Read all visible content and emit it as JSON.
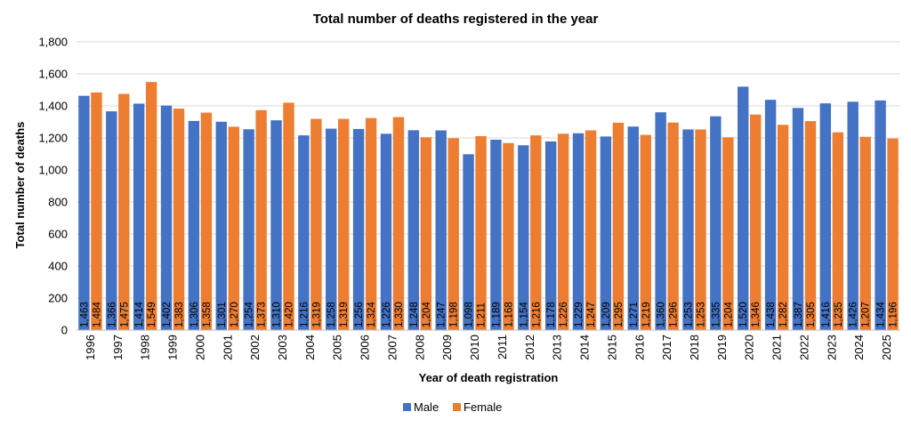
{
  "chart_data": {
    "type": "bar",
    "title": "Total number of deaths registered in the year",
    "xlabel": "Year of death registration",
    "ylabel": "Total number of deaths",
    "ylim": [
      0,
      1800
    ],
    "yticks": [
      "0",
      "200",
      "400",
      "600",
      "800",
      "1,000",
      "1,200",
      "1,400",
      "1,600",
      "1,800"
    ],
    "grid": true,
    "legend_position": "bottom",
    "categories": [
      "1996",
      "1997",
      "1998",
      "1999",
      "2000",
      "2001",
      "2002",
      "2003",
      "2004",
      "2005",
      "2006",
      "2007",
      "2008",
      "2009",
      "2010",
      "2011",
      "2012",
      "2013",
      "2014",
      "2015",
      "2016",
      "2017",
      "2018",
      "2019",
      "2020",
      "2021",
      "2022",
      "2023",
      "2024",
      "2025"
    ],
    "series": [
      {
        "name": "Male",
        "color": "#4472C4",
        "values": [
          1463,
          1366,
          1414,
          1402,
          1306,
          1301,
          1254,
          1310,
          1216,
          1258,
          1256,
          1226,
          1248,
          1247,
          1098,
          1189,
          1154,
          1178,
          1229,
          1209,
          1271,
          1360,
          1253,
          1335,
          1520,
          1438,
          1387,
          1416,
          1426,
          1434
        ],
        "labels": [
          "1,463",
          "1,366",
          "1,414",
          "1,402",
          "1,306",
          "1,301",
          "1,254",
          "1,310",
          "1,216",
          "1,258",
          "1,256",
          "1,226",
          "1,248",
          "1,247",
          "1,098",
          "1,189",
          "1,154",
          "1,178",
          "1,229",
          "1,209",
          "1,271",
          "1,360",
          "1,253",
          "1,335",
          "1,520",
          "1,438",
          "1,387",
          "1,416",
          "1,426",
          "1,434"
        ]
      },
      {
        "name": "Female",
        "color": "#ED7D31",
        "values": [
          1484,
          1475,
          1549,
          1383,
          1358,
          1270,
          1373,
          1420,
          1319,
          1319,
          1324,
          1330,
          1204,
          1198,
          1211,
          1168,
          1216,
          1226,
          1247,
          1295,
          1219,
          1296,
          1253,
          1204,
          1346,
          1282,
          1305,
          1235,
          1207,
          1196
        ],
        "labels": [
          "1,484",
          "1,475",
          "1,549",
          "1,383",
          "1,358",
          "1,270",
          "1,373",
          "1,420",
          "1,319",
          "1,319",
          "1,324",
          "1,330",
          "1,204",
          "1,198",
          "1,211",
          "1,168",
          "1,216",
          "1,226",
          "1,247",
          "1,295",
          "1,219",
          "1,296",
          "1,253",
          "1,204",
          "1,346",
          "1,282",
          "1,305",
          "1,235",
          "1,207",
          "1,196"
        ]
      }
    ]
  }
}
